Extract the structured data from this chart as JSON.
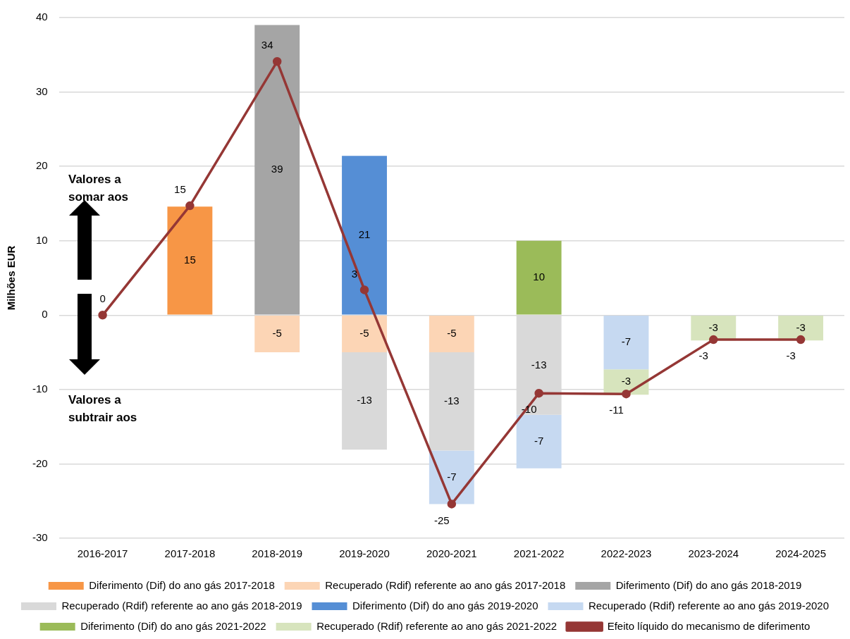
{
  "chart_data": {
    "type": "bar",
    "stacked": true,
    "ylabel": "Milhões EUR",
    "categories": [
      "2016-2017",
      "2017-2018",
      "2018-2019",
      "2019-2020",
      "2020-2021",
      "2021-2022",
      "2022-2023",
      "2023-2024",
      "2024-2025"
    ],
    "ylim": [
      -30,
      40
    ],
    "yticks": [
      -30,
      -20,
      -10,
      0,
      10,
      20,
      30,
      40
    ],
    "grid": "y",
    "legend": "bottom",
    "annotations": [
      "Valores a somar aos",
      "Valores a subtrair aos"
    ],
    "series": [
      {
        "name": "Diferimento (Dif) do ano gás 2017-2018",
        "color": "#f79646",
        "values": [
          null,
          14.6,
          null,
          null,
          null,
          null,
          null,
          null,
          null
        ],
        "value_labels": [
          null,
          "15",
          null,
          null,
          null,
          null,
          null,
          null,
          null
        ]
      },
      {
        "name": "Diferimento (Dif) do ano gás 2018-2019",
        "color": "#a5a5a5",
        "values": [
          null,
          null,
          39,
          null,
          null,
          null,
          null,
          null,
          null
        ],
        "value_labels": [
          null,
          null,
          "39",
          null,
          null,
          null,
          null,
          null,
          null
        ]
      },
      {
        "name": "Diferimento (Dif) do ano gás 2019-2020",
        "color": "#558ed5",
        "values": [
          null,
          null,
          null,
          21.4,
          null,
          null,
          null,
          null,
          null
        ],
        "value_labels": [
          null,
          null,
          null,
          "21",
          null,
          null,
          null,
          null,
          null
        ]
      },
      {
        "name": "Diferimento (Dif) do ano gás 2021-2022",
        "color": "#9bbb59",
        "values": [
          null,
          null,
          null,
          null,
          null,
          10,
          null,
          null,
          null
        ],
        "value_labels": [
          null,
          null,
          null,
          null,
          null,
          "10",
          null,
          null,
          null
        ]
      },
      {
        "name": "Recuperado (Rdif) referente ao ano gás 2017-2018",
        "color": "#fcd5b5",
        "values": [
          null,
          null,
          -5,
          -5,
          -5,
          null,
          null,
          null,
          null
        ],
        "value_labels": [
          null,
          null,
          "-5",
          "-5",
          "-5",
          null,
          null,
          null,
          null
        ]
      },
      {
        "name": "Recuperado (Rdif) referente ao ano gás 2018-2019",
        "color": "#d9d9d9",
        "values": [
          null,
          null,
          null,
          -13.1,
          -13.2,
          -13.4,
          null,
          null,
          null
        ],
        "value_labels": [
          null,
          null,
          null,
          "-13",
          "-13",
          "-13",
          null,
          null,
          null
        ]
      },
      {
        "name": "Recuperado (Rdif) referente ao ano gás 2019-2020",
        "color": "#c6d9f1",
        "values": [
          null,
          null,
          null,
          null,
          -7.2,
          -7.2,
          -7.3,
          null,
          null
        ],
        "value_labels": [
          null,
          null,
          null,
          null,
          "-7",
          "-7",
          "-7",
          null,
          null
        ]
      },
      {
        "name": "Recuperado (Rdif) referente ao ano gás 2021-2022",
        "color": "#d7e4bd",
        "values": [
          null,
          null,
          null,
          null,
          null,
          null,
          -3.4,
          -3.4,
          -3.4
        ],
        "value_labels": [
          null,
          null,
          null,
          null,
          null,
          null,
          "-3",
          "-3",
          "-3"
        ]
      },
      {
        "name": "Efeito líquido do mecanismo de diferimento",
        "type": "line",
        "color": "#953735",
        "marker": "circle",
        "line_style": "solid",
        "values": [
          0,
          14.7,
          34.1,
          3.4,
          -25.4,
          -10.5,
          -10.6,
          -3.3,
          -3.3
        ],
        "value_labels": [
          "0",
          "15",
          "34",
          "3",
          "-25",
          "-10",
          "-11",
          "-3",
          "-3"
        ]
      }
    ]
  }
}
